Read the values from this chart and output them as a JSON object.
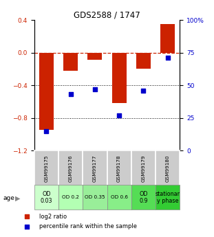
{
  "title": "GDS2588 / 1747",
  "samples": [
    "GSM99175",
    "GSM99176",
    "GSM99177",
    "GSM99178",
    "GSM99179",
    "GSM99180"
  ],
  "log2_ratio": [
    -0.95,
    -0.22,
    -0.09,
    -0.62,
    -0.2,
    0.35
  ],
  "percentile_rank": [
    15,
    43,
    47,
    27,
    46,
    71
  ],
  "bar_color": "#cc2200",
  "dot_color": "#0000cc",
  "dashed_color": "#cc2200",
  "ylim_left": [
    -1.2,
    0.4
  ],
  "ylim_right": [
    0,
    100
  ],
  "yticks_left": [
    0.4,
    0.0,
    -0.4,
    -0.8,
    -1.2
  ],
  "yticks_right": [
    100,
    75,
    50,
    25,
    0
  ],
  "ytick_right_labels": [
    "100%",
    "75",
    "50",
    "25",
    "0"
  ],
  "age_labels": [
    "OD\n0.03",
    "OD 0.2",
    "OD 0.35",
    "OD 0.6",
    "OD\n0.9",
    "stationar\ny phase"
  ],
  "age_bg_colors": [
    "#ccffcc",
    "#b3ffb3",
    "#99ee99",
    "#88ee88",
    "#55dd55",
    "#33cc33"
  ],
  "sample_bg_color": "#cccccc",
  "legend_bar_label": "log2 ratio",
  "legend_dot_label": "percentile rank within the sample"
}
